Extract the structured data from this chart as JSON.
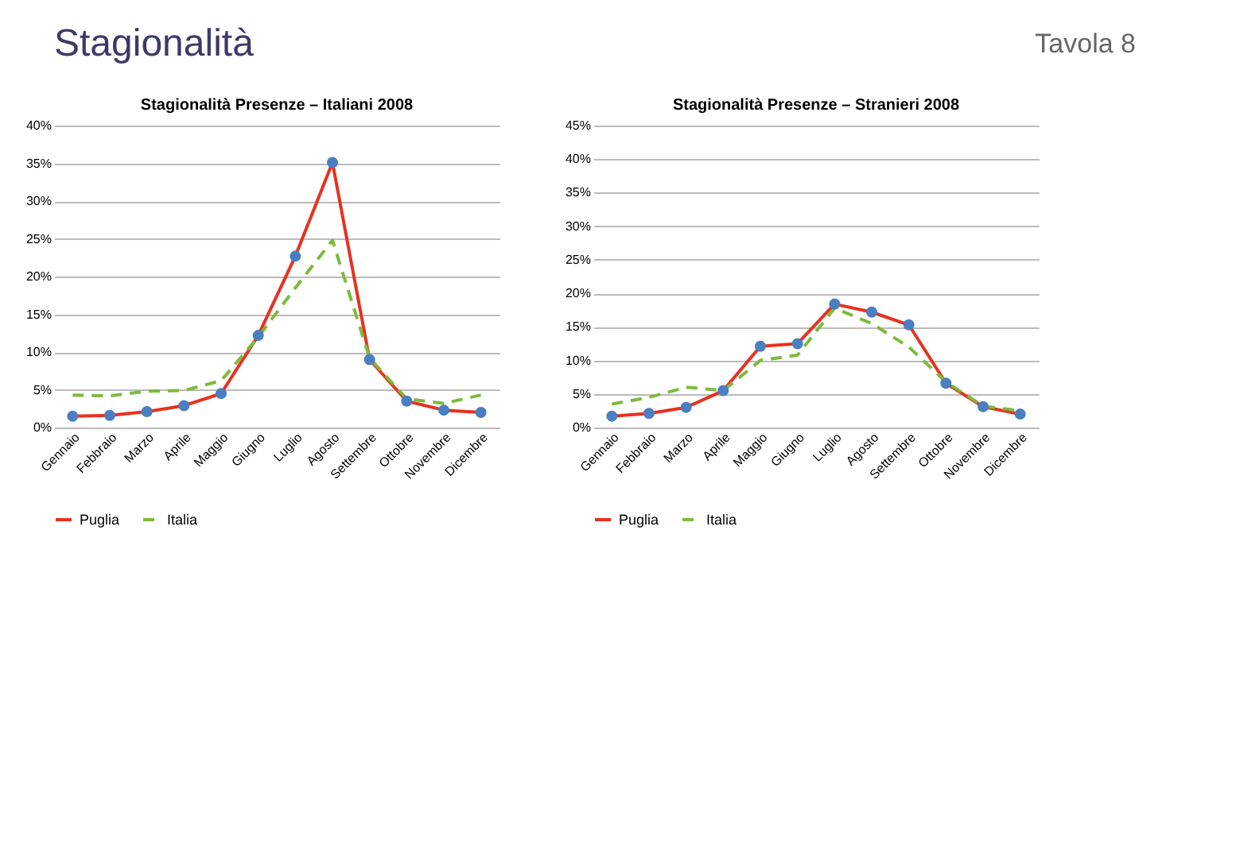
{
  "chart_data": [
    {
      "type": "line",
      "title": "Stagionalità Presenze – Italiani 2008",
      "annotations": [
        "Stagionalità",
        "Tavola 8"
      ],
      "categories": [
        "Gennaio",
        "Febbraio",
        "Marzo",
        "Aprile",
        "Maggio",
        "Giugno",
        "Luglio",
        "Agosto",
        "Settembre",
        "Ottobre",
        "Novembre",
        "Dicembre"
      ],
      "series": [
        {
          "name": "Puglia",
          "color": "#e8311f",
          "marker": "circle",
          "line_style": "solid",
          "values": [
            1.5,
            1.6,
            2.1,
            2.9,
            4.5,
            12.2,
            22.7,
            35.1,
            9.0,
            3.5,
            2.3,
            2.0
          ]
        },
        {
          "name": "Italia",
          "color": "#7dba3c",
          "marker": "none",
          "line_style": "dashed",
          "values": [
            4.3,
            4.2,
            4.8,
            4.9,
            6.2,
            12.0,
            18.5,
            24.8,
            9.2,
            3.8,
            3.2,
            4.3
          ]
        }
      ],
      "ylim": [
        0,
        40
      ],
      "yticks": [
        {
          "value": 0,
          "label": "0%"
        },
        {
          "value": 5,
          "label": "5%"
        },
        {
          "value": 10,
          "label": "10%"
        },
        {
          "value": 15,
          "label": "15%"
        },
        {
          "value": 20,
          "label": "20%"
        },
        {
          "value": 25,
          "label": "25%"
        },
        {
          "value": 30,
          "label": "30%"
        },
        {
          "value": 35,
          "label": "35%"
        },
        {
          "value": 40,
          "label": "40%"
        }
      ],
      "grid": "y",
      "legend": "bottom"
    },
    {
      "type": "line",
      "title": "Stagionalità Presenze – Stranieri 2008",
      "categories": [
        "Gennaio",
        "Febbraio",
        "Marzo",
        "Aprile",
        "Maggio",
        "Giugno",
        "Luglio",
        "Agosto",
        "Settembre",
        "Ottobre",
        "Novembre",
        "Dicembre"
      ],
      "series": [
        {
          "name": "Puglia",
          "color": "#e8311f",
          "marker": "circle",
          "line_style": "solid",
          "values": [
            1.7,
            2.1,
            3.0,
            5.5,
            12.1,
            12.5,
            18.4,
            17.2,
            15.3,
            6.6,
            3.1,
            2.0
          ]
        },
        {
          "name": "Italia",
          "color": "#7dba3c",
          "marker": "none",
          "line_style": "dashed",
          "values": [
            3.5,
            4.5,
            6.0,
            5.5,
            10.0,
            10.8,
            17.8,
            15.5,
            12.0,
            6.8,
            3.2,
            2.5
          ]
        }
      ],
      "ylim": [
        0,
        45
      ],
      "yticks": [
        {
          "value": 0,
          "label": "0%"
        },
        {
          "value": 5,
          "label": "5%"
        },
        {
          "value": 10,
          "label": "10%"
        },
        {
          "value": 15,
          "label": "15%"
        },
        {
          "value": 20,
          "label": "20%"
        },
        {
          "value": 25,
          "label": "25%"
        },
        {
          "value": 30,
          "label": "30%"
        },
        {
          "value": 35,
          "label": "35%"
        },
        {
          "value": 40,
          "label": "40%"
        },
        {
          "value": 45,
          "label": "45%"
        }
      ],
      "grid": "y",
      "legend": "bottom"
    }
  ]
}
